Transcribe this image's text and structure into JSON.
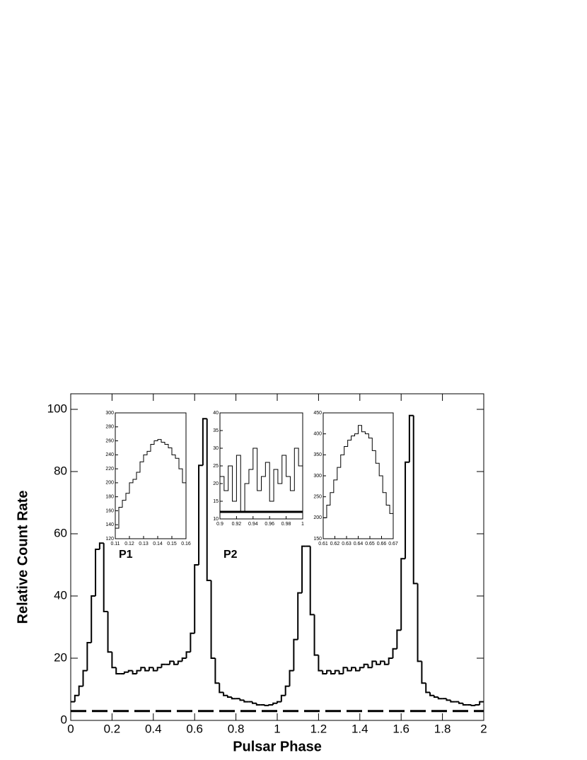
{
  "chart_data": [
    {
      "type": "histogram",
      "x_label": "Pulsar Phase",
      "y_label": "Relative Count Rate",
      "xlim": [
        0,
        2
      ],
      "ylim": [
        0,
        105
      ],
      "xticks": [
        0,
        0.2,
        0.4,
        0.6,
        0.8,
        1,
        1.2,
        1.4,
        1.6,
        1.8,
        2
      ],
      "yticks": [
        0,
        20,
        40,
        60,
        80,
        100
      ],
      "bins": [
        0,
        0.02,
        0.04,
        0.06,
        0.08,
        0.1,
        0.12,
        0.14,
        0.16,
        0.18,
        0.2,
        0.22,
        0.24,
        0.26,
        0.28,
        0.3,
        0.32,
        0.34,
        0.36,
        0.38,
        0.4,
        0.42,
        0.44,
        0.46,
        0.48,
        0.5,
        0.52,
        0.54,
        0.56,
        0.58,
        0.6,
        0.62,
        0.64,
        0.66,
        0.68,
        0.7,
        0.72,
        0.74,
        0.76,
        0.78,
        0.8,
        0.82,
        0.84,
        0.86,
        0.88,
        0.9,
        0.92,
        0.94,
        0.96,
        0.98,
        1,
        1.02,
        1.04,
        1.06,
        1.08,
        1.1,
        1.12,
        1.14,
        1.16,
        1.18,
        1.2,
        1.22,
        1.24,
        1.26,
        1.28,
        1.3,
        1.32,
        1.34,
        1.36,
        1.38,
        1.4,
        1.42,
        1.44,
        1.46,
        1.48,
        1.5,
        1.52,
        1.54,
        1.56,
        1.58,
        1.6,
        1.62,
        1.64,
        1.66,
        1.68,
        1.7,
        1.72,
        1.74,
        1.76,
        1.78,
        1.8,
        1.82,
        1.84,
        1.86,
        1.88,
        1.9,
        1.92,
        1.94,
        1.96,
        1.98,
        2
      ],
      "values": [
        6,
        8,
        11,
        16,
        25,
        40,
        55,
        57,
        35,
        22,
        17,
        15,
        15,
        15.5,
        16,
        15,
        16,
        17,
        16,
        17,
        16,
        17,
        18,
        18,
        19,
        18,
        19,
        20,
        22,
        28,
        50,
        82,
        97,
        45,
        20,
        12,
        9,
        8,
        7.5,
        7,
        7,
        6.5,
        6,
        6,
        5.5,
        5,
        5,
        4.8,
        5,
        5.5,
        6,
        8,
        11,
        16,
        26,
        41,
        56,
        56,
        34,
        21,
        16,
        15,
        16,
        15,
        16,
        15,
        17,
        16,
        17,
        16,
        17,
        18,
        17,
        19,
        18,
        19,
        18,
        20,
        23,
        29,
        52,
        83,
        98,
        44,
        19,
        12,
        9,
        8,
        7.5,
        7,
        7,
        6.5,
        6,
        6,
        5.5,
        5,
        5,
        4.8,
        5,
        6
      ],
      "color": "#000000",
      "background": 3,
      "annotations": [
        "P1",
        "P2"
      ]
    },
    {
      "type": "line",
      "xlim": [
        0.11,
        0.16
      ],
      "ylim": [
        120,
        300
      ],
      "xticks": [
        0.11,
        0.12,
        0.13,
        0.14,
        0.15,
        0.16
      ],
      "yticks": [
        120,
        140,
        160,
        180,
        200,
        220,
        240,
        260,
        280,
        300
      ],
      "x": [
        0.11,
        0.1125,
        0.115,
        0.1175,
        0.12,
        0.1225,
        0.125,
        0.1275,
        0.13,
        0.1325,
        0.135,
        0.1375,
        0.14,
        0.1425,
        0.145,
        0.1475,
        0.15,
        0.1525,
        0.155,
        0.1575,
        0.16
      ],
      "values": [
        135,
        165,
        175,
        185,
        200,
        205,
        215,
        230,
        240,
        245,
        255,
        260,
        262,
        258,
        255,
        250,
        240,
        235,
        220,
        200,
        185
      ],
      "color": "#000000"
    },
    {
      "type": "line",
      "xlim": [
        0.9,
        1
      ],
      "ylim": [
        10,
        40
      ],
      "xticks": [
        0.9,
        0.92,
        0.94,
        0.96,
        0.98,
        1
      ],
      "yticks": [
        10,
        15,
        20,
        25,
        30,
        35,
        40
      ],
      "x": [
        0.9,
        0.905,
        0.91,
        0.915,
        0.92,
        0.925,
        0.93,
        0.935,
        0.94,
        0.945,
        0.95,
        0.955,
        0.96,
        0.965,
        0.97,
        0.975,
        0.98,
        0.985,
        0.99,
        0.995,
        1
      ],
      "values": [
        22,
        18,
        25,
        15,
        28,
        12,
        20,
        24,
        30,
        18,
        22,
        26,
        15,
        24,
        20,
        28,
        22,
        18,
        30,
        25,
        35
      ],
      "color": "#000000",
      "background": 12
    },
    {
      "type": "line",
      "xlim": [
        0.61,
        0.67
      ],
      "ylim": [
        150,
        450
      ],
      "xticks": [
        0.61,
        0.62,
        0.63,
        0.64,
        0.65,
        0.66,
        0.67
      ],
      "yticks": [
        150,
        200,
        250,
        300,
        350,
        400,
        450
      ],
      "x": [
        0.61,
        0.613,
        0.616,
        0.619,
        0.622,
        0.625,
        0.628,
        0.631,
        0.634,
        0.637,
        0.64,
        0.643,
        0.646,
        0.649,
        0.652,
        0.655,
        0.658,
        0.661,
        0.664,
        0.667,
        0.67
      ],
      "values": [
        200,
        230,
        260,
        290,
        320,
        350,
        370,
        385,
        395,
        400,
        420,
        405,
        400,
        390,
        360,
        330,
        300,
        260,
        230,
        210,
        190
      ],
      "color": "#000000"
    }
  ]
}
